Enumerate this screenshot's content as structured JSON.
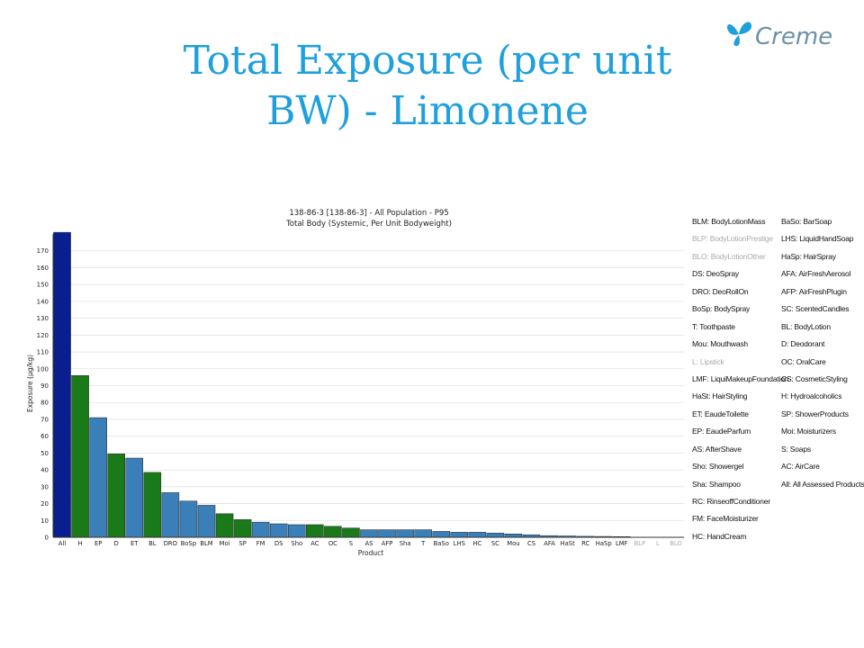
{
  "slide": {
    "title": "Total Exposure (per unit BW) - Limonene",
    "logo_text": "Creme"
  },
  "colors": {
    "title": "#1fa0dc",
    "all_bar": "#0a1f8f",
    "green_bar": "#1a7a1a",
    "blue_bar": "#3a7fb8",
    "legend_dim": "#aaaaaa"
  },
  "chart_data": {
    "type": "bar",
    "title": "138-86-3 [138-86-3] - All Population - P95",
    "subtitle": "Total Body (Systemic, Per Unit Bodyweight)",
    "xlabel": "Product",
    "ylabel": "Exposure (µg/kg)",
    "ylim": [
      0,
      180
    ],
    "yticks": [
      0,
      10,
      20,
      30,
      40,
      50,
      60,
      70,
      80,
      90,
      100,
      110,
      120,
      130,
      140,
      150,
      160,
      170
    ],
    "grid": true,
    "categories": [
      "All",
      "H",
      "EP",
      "D",
      "ET",
      "BL",
      "DRO",
      "BoSp",
      "BLM",
      "Moi",
      "SP",
      "FM",
      "DS",
      "Sho",
      "AC",
      "OC",
      "S",
      "AS",
      "AFP",
      "Sha",
      "T",
      "BaSo",
      "LHS",
      "HC",
      "SC",
      "Mou",
      "CS",
      "AFA",
      "HaSt",
      "RC",
      "HaSp",
      "LMF",
      "BLP",
      "L",
      "BLO"
    ],
    "values": [
      181,
      96,
      71,
      49.5,
      47,
      38.5,
      26.5,
      21.5,
      19,
      14,
      10.5,
      9,
      8,
      7.5,
      7.5,
      6.5,
      5.5,
      4.5,
      4.5,
      4.5,
      4.5,
      3.5,
      3,
      3,
      2.5,
      2,
      1.5,
      1,
      0.8,
      0.6,
      0.5,
      0.4,
      0,
      0,
      0
    ],
    "bar_colors": [
      "#0a1f8f",
      "#1a7a1a",
      "#3a7fb8",
      "#1a7a1a",
      "#3a7fb8",
      "#1a7a1a",
      "#3a7fb8",
      "#3a7fb8",
      "#3a7fb8",
      "#1a7a1a",
      "#1a7a1a",
      "#3a7fb8",
      "#3a7fb8",
      "#3a7fb8",
      "#1a7a1a",
      "#1a7a1a",
      "#1a7a1a",
      "#3a7fb8",
      "#3a7fb8",
      "#3a7fb8",
      "#3a7fb8",
      "#3a7fb8",
      "#3a7fb8",
      "#3a7fb8",
      "#3a7fb8",
      "#3a7fb8",
      "#3a7fb8",
      "#3a7fb8",
      "#3a7fb8",
      "#3a7fb8",
      "#3a7fb8",
      "#3a7fb8",
      "#3a7fb8",
      "#3a7fb8",
      "#3a7fb8"
    ],
    "dim_categories": [
      "BLP",
      "L",
      "BLO"
    ]
  },
  "legend": {
    "left": [
      {
        "text": "BLM: BodyLotionMass",
        "dim": false
      },
      {
        "text": "BLP: BodyLotionPrestige",
        "dim": true
      },
      {
        "text": "BLO: BodyLotionOther",
        "dim": true
      },
      {
        "text": "DS: DeoSpray",
        "dim": false
      },
      {
        "text": "DRO: DeoRollOn",
        "dim": false
      },
      {
        "text": "BoSp: BodySpray",
        "dim": false
      },
      {
        "text": "T: Toothpaste",
        "dim": false
      },
      {
        "text": "Mou: Mouthwash",
        "dim": false
      },
      {
        "text": "L: Lipstick",
        "dim": true
      },
      {
        "text": "LMF: LiquiMakeupFoundation",
        "dim": false
      },
      {
        "text": "HaSt: HairStyling",
        "dim": false
      },
      {
        "text": "ET: EaudeToilette",
        "dim": false
      },
      {
        "text": "EP: EaudeParfum",
        "dim": false
      },
      {
        "text": "AS: AfterShave",
        "dim": false
      },
      {
        "text": "Sho: Showergel",
        "dim": false
      },
      {
        "text": "Sha: Shampoo",
        "dim": false
      },
      {
        "text": "RC: RinseoffConditioner",
        "dim": false
      },
      {
        "text": "FM: FaceMoisturizer",
        "dim": false
      },
      {
        "text": "HC: HandCream",
        "dim": false
      }
    ],
    "right": [
      {
        "text": "BaSo: BarSoap",
        "dim": false
      },
      {
        "text": "LHS: LiquidHandSoap",
        "dim": false
      },
      {
        "text": "HaSp: HairSpray",
        "dim": false
      },
      {
        "text": "AFA: AirFreshAerosol",
        "dim": false
      },
      {
        "text": "AFP: AirFreshPlugin",
        "dim": false
      },
      {
        "text": "SC: ScentedCandles",
        "dim": false
      },
      {
        "text": "BL: BodyLotion",
        "dim": false
      },
      {
        "text": "D: Deodorant",
        "dim": false
      },
      {
        "text": "OC: OralCare",
        "dim": false
      },
      {
        "text": "CS: CosmeticStyling",
        "dim": false
      },
      {
        "text": "H: Hydroalcoholics",
        "dim": false
      },
      {
        "text": "SP: ShowerProducts",
        "dim": false
      },
      {
        "text": "Moi: Moisturizers",
        "dim": false
      },
      {
        "text": "S: Soaps",
        "dim": false
      },
      {
        "text": "AC: AirCare",
        "dim": false
      },
      {
        "text": "All: All Assessed Products",
        "dim": false
      }
    ]
  }
}
